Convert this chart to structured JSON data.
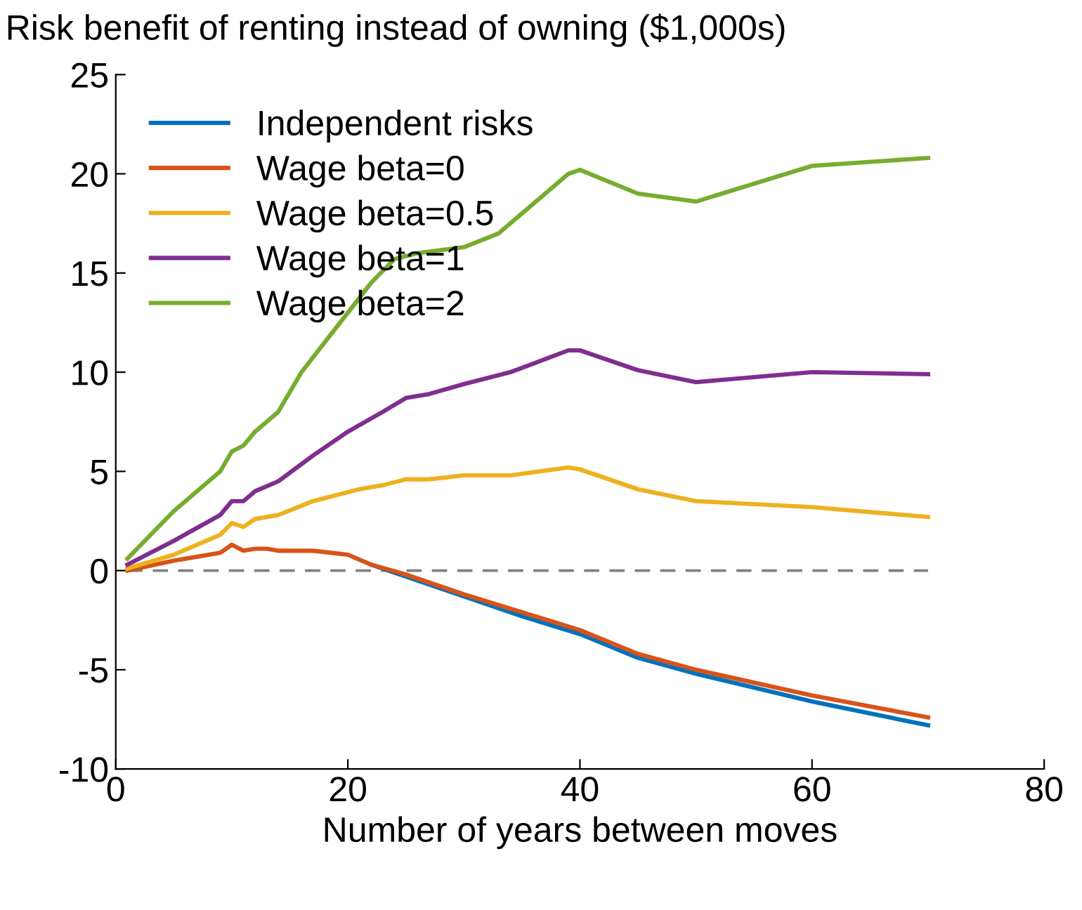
{
  "chart_data": {
    "type": "line",
    "title": "Risk benefit of renting instead of owning ($1,000s)",
    "xlabel": "Number of years between moves",
    "xlim": [
      0,
      80
    ],
    "xticks": [
      0,
      20,
      40,
      60,
      80
    ],
    "ylim": [
      -10,
      25
    ],
    "yticks": [
      -10,
      -5,
      0,
      5,
      10,
      15,
      20,
      25
    ],
    "grid": false,
    "legend": "top left",
    "line_style": "solid",
    "marker": "none",
    "ref_lines": [
      {
        "axis": "y",
        "value": 0,
        "label": null,
        "color": "#808080",
        "line_style": "dashed"
      }
    ],
    "series": [
      {
        "name": "Independent risks",
        "color": "#0072bd",
        "x": [
          22,
          25,
          30,
          35,
          40,
          45,
          50,
          60,
          70
        ],
        "values": [
          0.3,
          -0.3,
          -1.3,
          -2.3,
          -3.2,
          -4.4,
          -5.2,
          -6.6,
          -7.8
        ]
      },
      {
        "name": "Wage beta=0",
        "color": "#d95319",
        "x": [
          1,
          5,
          9,
          10,
          11,
          12,
          13,
          14,
          17,
          20,
          22,
          25,
          30,
          35,
          40,
          45,
          50,
          60,
          70
        ],
        "values": [
          0,
          0.5,
          0.9,
          1.3,
          1.0,
          1.1,
          1.1,
          1.0,
          1.0,
          0.8,
          0.3,
          -0.2,
          -1.2,
          -2.1,
          -3.0,
          -4.2,
          -5.0,
          -6.3,
          -7.4
        ]
      },
      {
        "name": "Wage beta=0.5",
        "color": "#edb120",
        "x": [
          1,
          5,
          9,
          10,
          11,
          12,
          14,
          17,
          21,
          23,
          25,
          27,
          30,
          34,
          39,
          40,
          45,
          50,
          60,
          70
        ],
        "values": [
          0.1,
          0.8,
          1.8,
          2.4,
          2.2,
          2.6,
          2.8,
          3.5,
          4.1,
          4.3,
          4.6,
          4.6,
          4.8,
          4.8,
          5.2,
          5.1,
          4.1,
          3.5,
          3.2,
          2.7
        ]
      },
      {
        "name": "Wage beta=1",
        "color": "#7e2f8e",
        "x": [
          1,
          5,
          9,
          10,
          11,
          12,
          14,
          17,
          20,
          23,
          25,
          27,
          30,
          34,
          39,
          40,
          45,
          50,
          60,
          70
        ],
        "values": [
          0.3,
          1.5,
          2.8,
          3.5,
          3.5,
          4.0,
          4.5,
          5.8,
          7.0,
          8.0,
          8.7,
          8.9,
          9.4,
          10.0,
          11.1,
          11.1,
          10.1,
          9.5,
          10.0,
          9.9
        ]
      },
      {
        "name": "Wage beta=2",
        "color": "#77ac30",
        "x": [
          1,
          5,
          8,
          9,
          10,
          11,
          12,
          14,
          16,
          18,
          20,
          22,
          24,
          26,
          30,
          33,
          36,
          39,
          40,
          45,
          50,
          60,
          70
        ],
        "values": [
          0.6,
          3.0,
          4.5,
          5.0,
          6.0,
          6.3,
          7.0,
          8.0,
          10.0,
          11.5,
          13.0,
          14.5,
          15.7,
          16.0,
          16.3,
          17.0,
          18.5,
          20.0,
          20.2,
          19.0,
          18.6,
          20.4,
          20.8
        ]
      }
    ]
  }
}
